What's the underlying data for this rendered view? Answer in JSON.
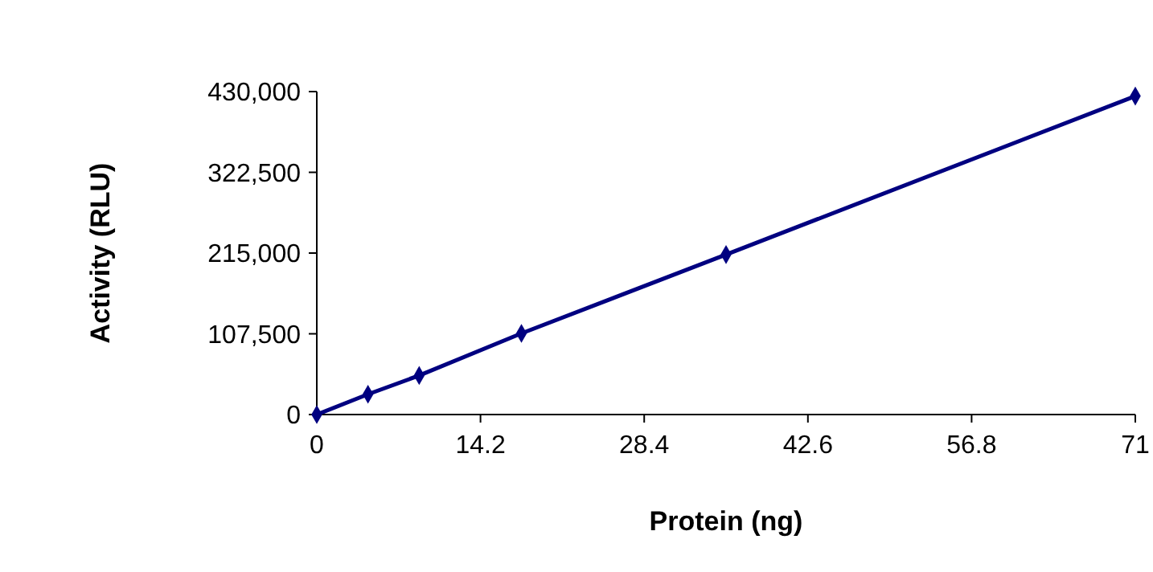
{
  "chart_data": {
    "type": "line",
    "xlabel": "Protein (ng)",
    "ylabel": "Activity (RLU)",
    "x": [
      0,
      4.44,
      8.88,
      17.75,
      35.5,
      71
    ],
    "series": [
      {
        "color": "#000080",
        "values": [
          0,
          27000,
          52000,
          108000,
          213000,
          424000
        ]
      }
    ],
    "xlim": [
      0,
      71
    ],
    "xticks": [
      0,
      14.2,
      28.4,
      42.6,
      56.8,
      71
    ],
    "ylim": [
      0,
      430000
    ],
    "yticks": [
      {
        "value": 0,
        "label": "0"
      },
      {
        "value": 107500,
        "label": "107,500"
      },
      {
        "value": 215000,
        "label": "215,000"
      },
      {
        "value": 322500,
        "label": "322,500"
      },
      {
        "value": 430000,
        "label": "430,000"
      }
    ],
    "marker": "diamond"
  }
}
